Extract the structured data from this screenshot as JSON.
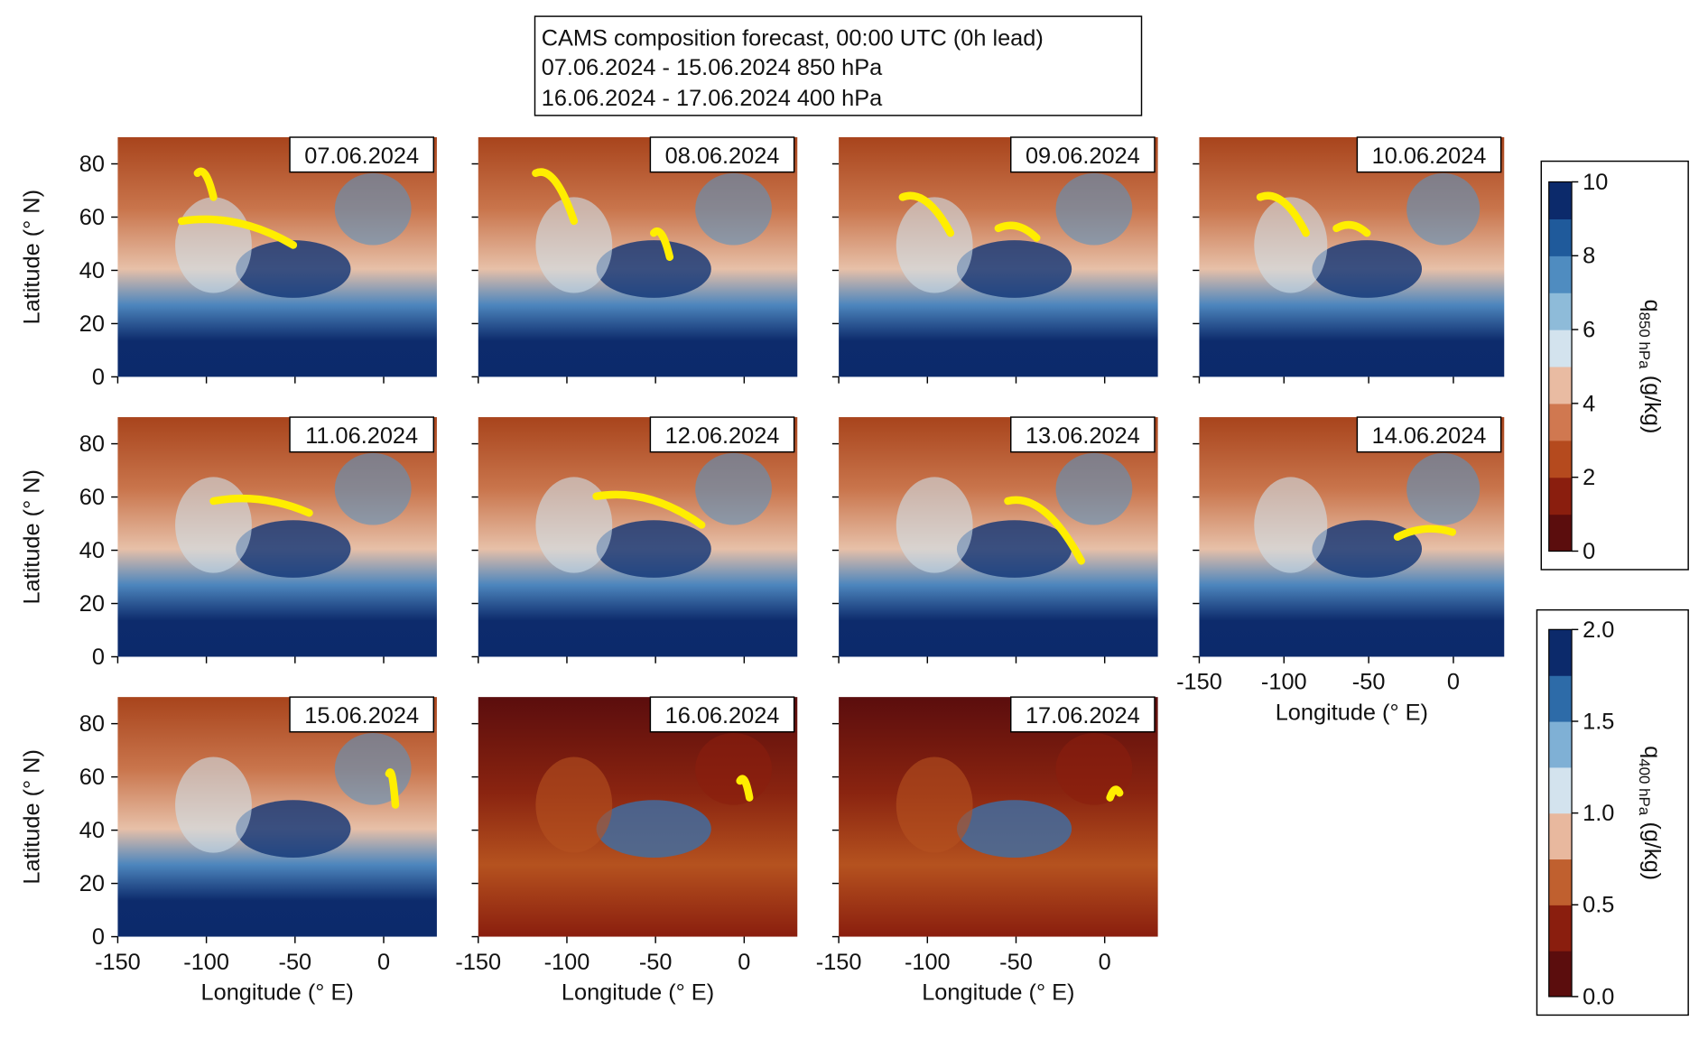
{
  "header": {
    "lines": [
      "CAMS composition forecast, 00:00 UTC (0h lead)",
      "07.06.2024 - 15.06.2024 850 hPa",
      "16.06.2024 - 17.06.2024 400 hPa"
    ]
  },
  "chart_data": [
    {
      "type": "map",
      "title": "07.06.2024",
      "xlim": [
        -150,
        30
      ],
      "ylim": [
        0,
        90
      ],
      "xticks": [
        -150,
        -100,
        -50,
        0
      ],
      "yticks": [
        0,
        20,
        40,
        60,
        80
      ],
      "xtick_labels": false,
      "ytick_labels": true,
      "ylabel": "Latitude (° N)"
    },
    {
      "type": "map",
      "title": "08.06.2024",
      "xlim": [
        -150,
        30
      ],
      "ylim": [
        0,
        90
      ],
      "xticks": [
        -150,
        -100,
        -50,
        0
      ],
      "yticks": [
        0,
        20,
        40,
        60,
        80
      ],
      "xtick_labels": false,
      "ytick_labels": false
    },
    {
      "type": "map",
      "title": "09.06.2024",
      "xlim": [
        -150,
        30
      ],
      "ylim": [
        0,
        90
      ],
      "xticks": [
        -150,
        -100,
        -50,
        0
      ],
      "yticks": [
        0,
        20,
        40,
        60,
        80
      ],
      "xtick_labels": false,
      "ytick_labels": false
    },
    {
      "type": "map",
      "title": "10.06.2024",
      "xlim": [
        -150,
        30
      ],
      "ylim": [
        0,
        90
      ],
      "xticks": [
        -150,
        -100,
        -50,
        0
      ],
      "yticks": [
        0,
        20,
        40,
        60,
        80
      ],
      "xtick_labels": false,
      "ytick_labels": false
    },
    {
      "type": "map",
      "title": "11.06.2024",
      "xlim": [
        -150,
        30
      ],
      "ylim": [
        0,
        90
      ],
      "xticks": [
        -150,
        -100,
        -50,
        0
      ],
      "yticks": [
        0,
        20,
        40,
        60,
        80
      ],
      "xtick_labels": false,
      "ytick_labels": true,
      "ylabel": "Latitude (° N)"
    },
    {
      "type": "map",
      "title": "12.06.2024",
      "xlim": [
        -150,
        30
      ],
      "ylim": [
        0,
        90
      ],
      "xticks": [
        -150,
        -100,
        -50,
        0
      ],
      "yticks": [
        0,
        20,
        40,
        60,
        80
      ],
      "xtick_labels": false,
      "ytick_labels": false
    },
    {
      "type": "map",
      "title": "13.06.2024",
      "xlim": [
        -150,
        30
      ],
      "ylim": [
        0,
        90
      ],
      "xticks": [
        -150,
        -100,
        -50,
        0
      ],
      "yticks": [
        0,
        20,
        40,
        60,
        80
      ],
      "xtick_labels": false,
      "ytick_labels": false
    },
    {
      "type": "map",
      "title": "14.06.2024",
      "xlim": [
        -150,
        30
      ],
      "ylim": [
        0,
        90
      ],
      "xticks": [
        -150,
        -100,
        -50,
        0
      ],
      "yticks": [
        0,
        20,
        40,
        60,
        80
      ],
      "xtick_labels": true,
      "ytick_labels": false,
      "xlabel": "Longitude (° E)"
    },
    {
      "type": "map",
      "title": "15.06.2024",
      "xlim": [
        -150,
        30
      ],
      "ylim": [
        0,
        90
      ],
      "xticks": [
        -150,
        -100,
        -50,
        0
      ],
      "yticks": [
        0,
        20,
        40,
        60,
        80
      ],
      "xtick_labels": true,
      "ytick_labels": true,
      "xlabel": "Longitude (° E)",
      "ylabel": "Latitude (° N)"
    },
    {
      "type": "map",
      "title": "16.06.2024",
      "xlim": [
        -150,
        30
      ],
      "ylim": [
        0,
        90
      ],
      "xticks": [
        -150,
        -100,
        -50,
        0
      ],
      "yticks": [
        0,
        20,
        40,
        60,
        80
      ],
      "xtick_labels": true,
      "ytick_labels": false,
      "xlabel": "Longitude (° E)"
    },
    {
      "type": "map",
      "title": "17.06.2024",
      "xlim": [
        -150,
        30
      ],
      "ylim": [
        0,
        90
      ],
      "xticks": [
        -150,
        -100,
        -50,
        0
      ],
      "yticks": [
        0,
        20,
        40,
        60,
        80
      ],
      "xtick_labels": true,
      "ytick_labels": false,
      "xlabel": "Longitude (° E)"
    },
    {
      "type": "colorbar",
      "ylabel": {
        "symbol": "q",
        "subscript": "850 hPa",
        "unit": "(g/kg)"
      },
      "ylim": [
        0,
        10
      ],
      "yticks": [
        0,
        2,
        4,
        6,
        8,
        10
      ],
      "colors": [
        "#5b0d0d",
        "#8a1e0e",
        "#b54a1e",
        "#d07850",
        "#e9bba2",
        "#d3e3ee",
        "#8ebbd9",
        "#4f8cc0",
        "#1f5a9b",
        "#0c2a6b"
      ]
    },
    {
      "type": "colorbar",
      "ylabel": {
        "symbol": "q",
        "subscript": "400 hPa",
        "unit": "(g/kg)"
      },
      "ylim": [
        0,
        2
      ],
      "yticks": [
        {
          "value": 0,
          "label": "0.0"
        },
        {
          "value": 0.5,
          "label": "0.5"
        },
        {
          "value": 1,
          "label": "1.0"
        },
        {
          "value": 1.5,
          "label": "1.5"
        },
        {
          "value": 2,
          "label": "2.0"
        }
      ],
      "colors": [
        "#5b0d0d",
        "#8a1e0e",
        "#c0602f",
        "#e8b89e",
        "#d3e3ee",
        "#7fb0d5",
        "#2d6ba8",
        "#0c2a6b"
      ]
    }
  ]
}
